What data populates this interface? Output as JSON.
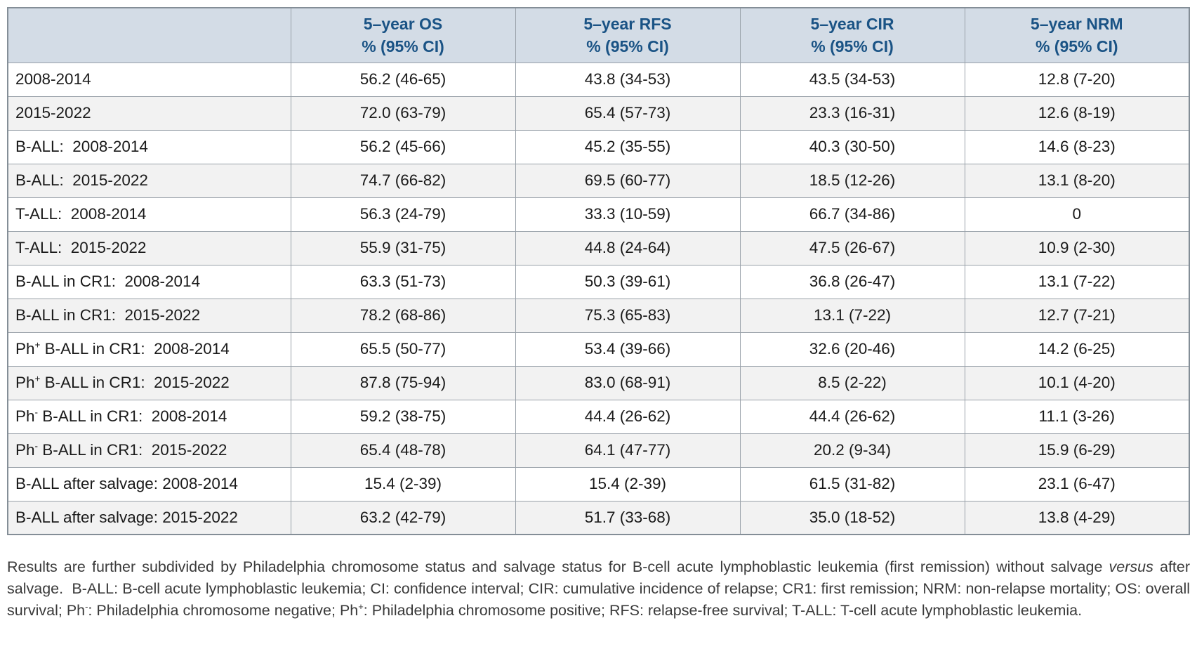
{
  "colors": {
    "header_background": "#d3dce6",
    "header_text": "#1a5385",
    "row_alternate_background": "#f2f2f2",
    "border": "#99a1a9",
    "body_text": "#1a1a1a",
    "footnote_text": "#3a3a3a"
  },
  "table": {
    "columns": [
      {
        "line1": "5–year OS",
        "line2": "% (95% CI)"
      },
      {
        "line1": "5–year RFS",
        "line2": "% (95% CI)"
      },
      {
        "line1": "5–year CIR",
        "line2": "% (95% CI)"
      },
      {
        "line1": "5–year NRM",
        "line2": "% (95% CI)"
      }
    ],
    "rows": [
      {
        "label_pre": "2008-2014",
        "label_sup": "",
        "label_post": "",
        "values": [
          "56.2 (46-65)",
          "43.8 (34-53)",
          "43.5 (34-53)",
          "12.8 (7-20)"
        ]
      },
      {
        "label_pre": "2015-2022",
        "label_sup": "",
        "label_post": "",
        "values": [
          "72.0 (63-79)",
          "65.4 (57-73)",
          "23.3 (16-31)",
          "12.6 (8-19)"
        ]
      },
      {
        "label_pre": "B-ALL:  2008-2014",
        "label_sup": "",
        "label_post": "",
        "values": [
          "56.2 (45-66)",
          "45.2 (35-55)",
          "40.3 (30-50)",
          "14.6 (8-23)"
        ]
      },
      {
        "label_pre": "B-ALL:  2015-2022",
        "label_sup": "",
        "label_post": "",
        "values": [
          "74.7 (66-82)",
          "69.5 (60-77)",
          "18.5 (12-26)",
          "13.1 (8-20)"
        ]
      },
      {
        "label_pre": "T-ALL:  2008-2014",
        "label_sup": "",
        "label_post": "",
        "values": [
          "56.3 (24-79)",
          "33.3 (10-59)",
          "66.7 (34-86)",
          "0"
        ]
      },
      {
        "label_pre": "T-ALL:  2015-2022",
        "label_sup": "",
        "label_post": "",
        "values": [
          "55.9 (31-75)",
          "44.8 (24-64)",
          "47.5 (26-67)",
          "10.9 (2-30)"
        ]
      },
      {
        "label_pre": "B-ALL in CR1:  2008-2014",
        "label_sup": "",
        "label_post": "",
        "values": [
          "63.3 (51-73)",
          "50.3 (39-61)",
          "36.8 (26-47)",
          "13.1 (7-22)"
        ]
      },
      {
        "label_pre": "B-ALL in CR1:  2015-2022",
        "label_sup": "",
        "label_post": "",
        "values": [
          "78.2 (68-86)",
          "75.3 (65-83)",
          "13.1 (7-22)",
          "12.7 (7-21)"
        ]
      },
      {
        "label_pre": "Ph",
        "label_sup": "+",
        "label_post": " B-ALL in CR1:  2008-2014",
        "values": [
          "65.5 (50-77)",
          "53.4 (39-66)",
          "32.6 (20-46)",
          "14.2 (6-25)"
        ]
      },
      {
        "label_pre": "Ph",
        "label_sup": "+",
        "label_post": " B-ALL in CR1:  2015-2022",
        "values": [
          "87.8 (75-94)",
          "83.0 (68-91)",
          "8.5 (2-22)",
          "10.1 (4-20)"
        ]
      },
      {
        "label_pre": "Ph",
        "label_sup": "-",
        "label_post": " B-ALL in CR1:  2008-2014",
        "values": [
          "59.2 (38-75)",
          "44.4 (26-62)",
          "44.4 (26-62)",
          "11.1 (3-26)"
        ]
      },
      {
        "label_pre": "Ph",
        "label_sup": "-",
        "label_post": " B-ALL in CR1:  2015-2022",
        "values": [
          "65.4 (48-78)",
          "64.1 (47-77)",
          "20.2 (9-34)",
          "15.9 (6-29)"
        ]
      },
      {
        "label_pre": "B-ALL after salvage: 2008-2014",
        "label_sup": "",
        "label_post": "",
        "values": [
          "15.4 (2-39)",
          "15.4 (2-39)",
          "61.5 (31-82)",
          "23.1 (6-47)"
        ]
      },
      {
        "label_pre": "B-ALL after salvage: 2015-2022",
        "label_sup": "",
        "label_post": "",
        "values": [
          "63.2 (42-79)",
          "51.7 (33-68)",
          "35.0 (18-52)",
          "13.8 (4-29)"
        ]
      }
    ]
  },
  "footnote": {
    "segments": [
      {
        "text": "Results are further subdivided by Philadelphia chromosome status and salvage status for B-cell acute lymphoblastic leukemia (first remission) without salvage ",
        "style": "normal"
      },
      {
        "text": "versus",
        "style": "italic"
      },
      {
        "text": " after salvage.  B-ALL: B-cell acute lymphoblastic leukemia; CI: confidence interval; CIR: cumulative incidence of relapse; CR1: first remission; NRM: non-relapse mortality; OS: overall survival; Ph",
        "style": "normal"
      },
      {
        "text": "-",
        "style": "sup"
      },
      {
        "text": ": Philadelphia chromosome negative; Ph",
        "style": "normal"
      },
      {
        "text": "+",
        "style": "sup"
      },
      {
        "text": ": Philadelphia chromosome positive; RFS: relapse-free survival; T-ALL: T-cell acute lymphoblastic leukemia.",
        "style": "normal"
      }
    ]
  },
  "chart_data": {
    "type": "table",
    "title": "",
    "columns": [
      "",
      "5-year OS % (95% CI)",
      "5-year RFS % (95% CI)",
      "5-year CIR % (95% CI)",
      "5-year NRM % (95% CI)"
    ],
    "rows": [
      [
        "2008-2014",
        "56.2 (46-65)",
        "43.8 (34-53)",
        "43.5 (34-53)",
        "12.8 (7-20)"
      ],
      [
        "2015-2022",
        "72.0 (63-79)",
        "65.4 (57-73)",
        "23.3 (16-31)",
        "12.6 (8-19)"
      ],
      [
        "B-ALL: 2008-2014",
        "56.2 (45-66)",
        "45.2 (35-55)",
        "40.3 (30-50)",
        "14.6 (8-23)"
      ],
      [
        "B-ALL: 2015-2022",
        "74.7 (66-82)",
        "69.5 (60-77)",
        "18.5 (12-26)",
        "13.1 (8-20)"
      ],
      [
        "T-ALL: 2008-2014",
        "56.3 (24-79)",
        "33.3 (10-59)",
        "66.7 (34-86)",
        "0"
      ],
      [
        "T-ALL: 2015-2022",
        "55.9 (31-75)",
        "44.8 (24-64)",
        "47.5 (26-67)",
        "10.9 (2-30)"
      ],
      [
        "B-ALL in CR1: 2008-2014",
        "63.3 (51-73)",
        "50.3 (39-61)",
        "36.8 (26-47)",
        "13.1 (7-22)"
      ],
      [
        "B-ALL in CR1: 2015-2022",
        "78.2 (68-86)",
        "75.3 (65-83)",
        "13.1 (7-22)",
        "12.7 (7-21)"
      ],
      [
        "Ph+ B-ALL in CR1: 2008-2014",
        "65.5 (50-77)",
        "53.4 (39-66)",
        "32.6 (20-46)",
        "14.2 (6-25)"
      ],
      [
        "Ph+ B-ALL in CR1: 2015-2022",
        "87.8 (75-94)",
        "83.0 (68-91)",
        "8.5 (2-22)",
        "10.1 (4-20)"
      ],
      [
        "Ph- B-ALL in CR1: 2008-2014",
        "59.2 (38-75)",
        "44.4 (26-62)",
        "44.4 (26-62)",
        "11.1 (3-26)"
      ],
      [
        "Ph- B-ALL in CR1: 2015-2022",
        "65.4 (48-78)",
        "64.1 (47-77)",
        "20.2 (9-34)",
        "15.9 (6-29)"
      ],
      [
        "B-ALL after salvage: 2008-2014",
        "15.4 (2-39)",
        "15.4 (2-39)",
        "61.5 (31-82)",
        "23.1 (6-47)"
      ],
      [
        "B-ALL after salvage: 2015-2022",
        "63.2 (42-79)",
        "51.7 (33-68)",
        "35.0 (18-52)",
        "13.8 (4-29)"
      ]
    ]
  }
}
